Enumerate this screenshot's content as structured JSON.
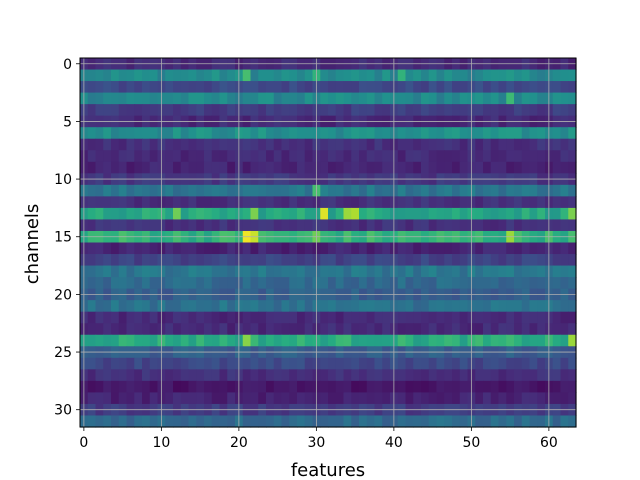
{
  "chart_data": {
    "type": "heatmap",
    "title": "",
    "xlabel": "features",
    "ylabel": "channels",
    "n_cols": 64,
    "n_rows": 32,
    "xlim": [
      -0.5,
      63.5
    ],
    "ylim": [
      31.5,
      -0.5
    ],
    "xticks": [
      0,
      10,
      20,
      30,
      40,
      50,
      60
    ],
    "yticks": [
      0,
      5,
      10,
      15,
      20,
      25,
      30
    ],
    "colormap": "viridis",
    "grid": true,
    "row_levels": [
      0.12,
      0.48,
      0.22,
      0.47,
      0.18,
      0.12,
      0.5,
      0.14,
      0.12,
      0.1,
      0.16,
      0.4,
      0.14,
      0.6,
      0.14,
      0.65,
      0.1,
      0.2,
      0.4,
      0.35,
      0.3,
      0.38,
      0.12,
      0.12,
      0.62,
      0.3,
      0.22,
      0.14,
      0.06,
      0.1,
      0.18,
      0.35
    ],
    "hotspots": [
      {
        "row": 1,
        "col": 21,
        "value": 0.7
      },
      {
        "row": 1,
        "col": 30,
        "value": 0.65
      },
      {
        "row": 1,
        "col": 41,
        "value": 0.65
      },
      {
        "row": 3,
        "col": 55,
        "value": 0.68
      },
      {
        "row": 11,
        "col": 30,
        "value": 0.7
      },
      {
        "row": 13,
        "col": 12,
        "value": 0.78
      },
      {
        "row": 13,
        "col": 22,
        "value": 0.8
      },
      {
        "row": 13,
        "col": 31,
        "value": 0.95
      },
      {
        "row": 13,
        "col": 34,
        "value": 0.85
      },
      {
        "row": 13,
        "col": 35,
        "value": 0.88
      },
      {
        "row": 13,
        "col": 63,
        "value": 0.8
      },
      {
        "row": 15,
        "col": 21,
        "value": 0.98
      },
      {
        "row": 15,
        "col": 22,
        "value": 0.92
      },
      {
        "row": 15,
        "col": 30,
        "value": 0.78
      },
      {
        "row": 15,
        "col": 55,
        "value": 0.85
      },
      {
        "row": 24,
        "col": 21,
        "value": 0.82
      },
      {
        "row": 24,
        "col": 63,
        "value": 0.85
      }
    ]
  }
}
